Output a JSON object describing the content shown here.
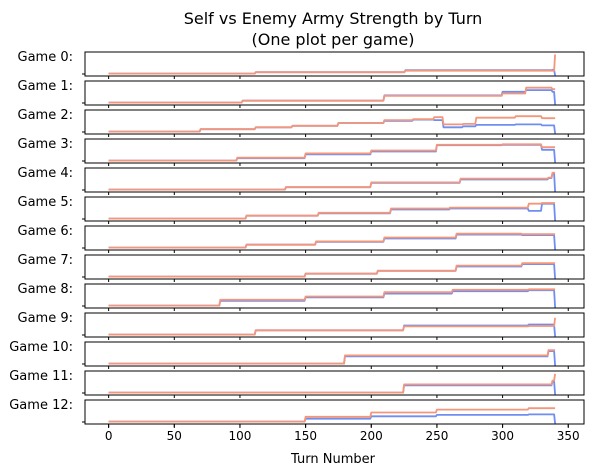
{
  "chart_data": {
    "type": "line",
    "title_line1": "Self vs Enemy Army Strength by Turn",
    "title_line2": "(One plot per game)",
    "xlabel": "Turn Number",
    "xticks": [
      0,
      50,
      100,
      150,
      200,
      250,
      300,
      350
    ],
    "xlim": [
      -18,
      362
    ],
    "colors": {
      "self": "#6f8ef0",
      "enemy": "#f4967a"
    },
    "games": [
      {
        "label": "Game 0:",
        "turns": [
          0,
          112,
          226,
          338,
          340
        ],
        "self": [
          0.1,
          0.16,
          0.24,
          0.26,
          0.02
        ],
        "enemy": [
          0.1,
          0.16,
          0.22,
          0.22,
          0.9
        ]
      },
      {
        "label": "Game 1:",
        "turns": [
          0,
          102,
          210,
          300,
          318,
          338,
          340
        ],
        "self": [
          0.1,
          0.18,
          0.4,
          0.55,
          0.62,
          0.55,
          0.02
        ],
        "enemy": [
          0.1,
          0.18,
          0.38,
          0.48,
          0.72,
          0.66,
          0.66
        ]
      },
      {
        "label": "Game 2:",
        "turns": [
          0,
          70,
          112,
          140,
          175,
          210,
          232,
          248,
          255,
          270,
          280,
          310,
          330,
          340
        ],
        "self": [
          0.1,
          0.2,
          0.28,
          0.34,
          0.46,
          0.55,
          0.6,
          0.58,
          0.28,
          0.32,
          0.38,
          0.4,
          0.36,
          0.02
        ],
        "enemy": [
          0.1,
          0.2,
          0.28,
          0.34,
          0.46,
          0.58,
          0.62,
          0.7,
          0.4,
          0.42,
          0.68,
          0.74,
          0.66,
          0.66
        ]
      },
      {
        "label": "Game 3:",
        "turns": [
          0,
          98,
          150,
          200,
          250,
          300,
          330,
          340
        ],
        "self": [
          0.1,
          0.2,
          0.36,
          0.48,
          0.74,
          0.76,
          0.55,
          0.02
        ],
        "enemy": [
          0.1,
          0.22,
          0.4,
          0.52,
          0.76,
          0.78,
          0.66,
          0.66
        ]
      },
      {
        "label": "Game 4:",
        "turns": [
          0,
          135,
          200,
          268,
          335,
          338,
          340
        ],
        "self": [
          0.1,
          0.2,
          0.38,
          0.52,
          0.58,
          0.78,
          0.02
        ],
        "enemy": [
          0.1,
          0.2,
          0.4,
          0.56,
          0.6,
          0.8,
          0.8
        ]
      },
      {
        "label": "Game 5:",
        "turns": [
          0,
          105,
          160,
          215,
          260,
          320,
          330,
          340
        ],
        "self": [
          0.1,
          0.22,
          0.32,
          0.48,
          0.52,
          0.42,
          0.72,
          0.02
        ],
        "enemy": [
          0.1,
          0.22,
          0.34,
          0.52,
          0.56,
          0.72,
          0.75,
          0.75
        ]
      },
      {
        "label": "Game 6:",
        "turns": [
          0,
          105,
          158,
          210,
          265,
          315,
          340
        ],
        "self": [
          0.1,
          0.22,
          0.34,
          0.48,
          0.64,
          0.62,
          0.02
        ],
        "enemy": [
          0.1,
          0.22,
          0.36,
          0.52,
          0.68,
          0.66,
          0.66
        ]
      },
      {
        "label": "Game 7:",
        "turns": [
          0,
          150,
          205,
          265,
          315,
          340
        ],
        "self": [
          0.1,
          0.22,
          0.34,
          0.52,
          0.62,
          0.02
        ],
        "enemy": [
          0.1,
          0.22,
          0.34,
          0.56,
          0.66,
          0.66
        ]
      },
      {
        "label": "Game 8:",
        "turns": [
          0,
          85,
          150,
          210,
          262,
          320,
          340
        ],
        "self": [
          0.1,
          0.3,
          0.44,
          0.6,
          0.7,
          0.74,
          0.02
        ],
        "enemy": [
          0.1,
          0.34,
          0.48,
          0.66,
          0.76,
          0.78,
          0.78
        ]
      },
      {
        "label": "Game 9:",
        "turns": [
          0,
          112,
          225,
          320,
          340
        ],
        "self": [
          0.1,
          0.28,
          0.48,
          0.52,
          0.02
        ],
        "enemy": [
          0.1,
          0.28,
          0.44,
          0.46,
          0.8
        ]
      },
      {
        "label": "Game 10:",
        "turns": [
          0,
          180,
          335,
          340
        ],
        "self": [
          0.1,
          0.4,
          0.62,
          0.02
        ],
        "enemy": [
          0.1,
          0.44,
          0.66,
          0.66
        ]
      },
      {
        "label": "Game 11:",
        "turns": [
          0,
          225,
          338,
          340
        ],
        "self": [
          0.1,
          0.4,
          0.56,
          0.02
        ],
        "enemy": [
          0.1,
          0.44,
          0.6,
          0.88
        ]
      },
      {
        "label": "Game 12:",
        "turns": [
          0,
          150,
          200,
          250,
          320,
          340
        ],
        "self": [
          0.1,
          0.22,
          0.32,
          0.38,
          0.4,
          0.02
        ],
        "enemy": [
          0.1,
          0.3,
          0.48,
          0.6,
          0.66,
          0.66
        ]
      }
    ]
  }
}
